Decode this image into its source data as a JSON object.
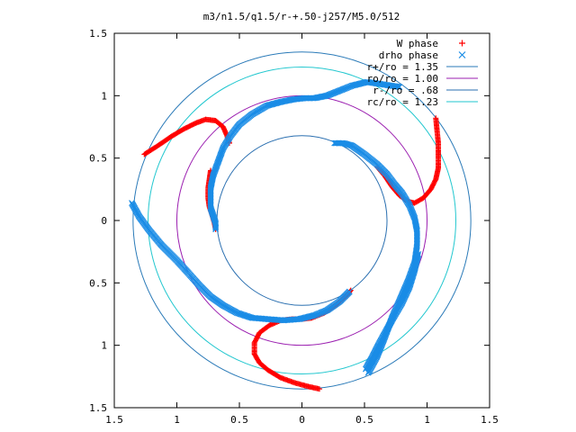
{
  "chart_data": {
    "type": "scatter",
    "title": "m3/n1.5/q1.5/r-+.50-j257/M5.0/512",
    "xlabel": "",
    "ylabel": "",
    "xlim": [
      -1.5,
      1.5
    ],
    "ylim": [
      -1.5,
      1.5
    ],
    "grid": false,
    "legend_position": "top-right",
    "x_tick_labels": [
      "1.5",
      "1",
      "0.5",
      "0",
      "0.5",
      "1",
      "1.5"
    ],
    "y_tick_labels": [
      "1.5",
      "1",
      "0.5",
      "0",
      "0.5",
      "1",
      "1.5"
    ],
    "series": [
      {
        "name": "W phase",
        "marker": "+",
        "color": "#ff0000",
        "segments": [
          [
            [
              -1.26,
              0.53
            ],
            [
              -1.15,
              0.6
            ],
            [
              -1.05,
              0.67
            ],
            [
              -0.95,
              0.73
            ],
            [
              -0.85,
              0.78
            ],
            [
              -0.77,
              0.81
            ],
            [
              -0.69,
              0.8
            ],
            [
              -0.63,
              0.75
            ],
            [
              -0.6,
              0.68
            ],
            [
              -0.58,
              0.62
            ]
          ],
          [
            [
              -0.73,
              0.4
            ],
            [
              -0.74,
              0.33
            ],
            [
              -0.75,
              0.26
            ],
            [
              -0.75,
              0.18
            ],
            [
              -0.74,
              0.11
            ],
            [
              -0.72,
              0.05
            ],
            [
              -0.7,
              -0.02
            ],
            [
              -0.69,
              -0.07
            ]
          ],
          [
            [
              1.07,
              0.82
            ],
            [
              1.08,
              0.72
            ],
            [
              1.09,
              0.62
            ],
            [
              1.09,
              0.52
            ],
            [
              1.09,
              0.42
            ],
            [
              1.07,
              0.33
            ],
            [
              1.03,
              0.25
            ],
            [
              0.97,
              0.18
            ],
            [
              0.9,
              0.14
            ],
            [
              0.85,
              0.15
            ],
            [
              0.78,
              0.2
            ],
            [
              0.72,
              0.27
            ],
            [
              0.66,
              0.36
            ],
            [
              0.6,
              0.43
            ]
          ],
          [
            [
              0.14,
              -1.35
            ],
            [
              0.05,
              -1.33
            ],
            [
              -0.06,
              -1.3
            ],
            [
              -0.17,
              -1.26
            ],
            [
              -0.27,
              -1.2
            ],
            [
              -0.34,
              -1.14
            ],
            [
              -0.38,
              -1.07
            ],
            [
              -0.38,
              -0.98
            ],
            [
              -0.34,
              -0.9
            ],
            [
              -0.26,
              -0.84
            ],
            [
              -0.17,
              -0.8
            ],
            [
              -0.08,
              -0.79
            ],
            [
              0.0,
              -0.79
            ],
            [
              0.08,
              -0.78
            ],
            [
              0.18,
              -0.74
            ],
            [
              0.28,
              -0.67
            ],
            [
              0.36,
              -0.6
            ],
            [
              0.39,
              -0.56
            ]
          ]
        ]
      },
      {
        "name": "drho phase",
        "marker": "x",
        "color": "#1a8ce6",
        "segments": [
          [
            [
              0.78,
              1.07
            ],
            [
              0.65,
              1.09
            ],
            [
              0.52,
              1.11
            ],
            [
              0.4,
              1.08
            ],
            [
              0.3,
              1.04
            ],
            [
              0.2,
              1.0
            ],
            [
              0.1,
              0.98
            ],
            [
              0.02,
              0.98
            ],
            [
              -0.07,
              0.97
            ],
            [
              -0.17,
              0.95
            ],
            [
              -0.28,
              0.92
            ],
            [
              -0.4,
              0.85
            ],
            [
              -0.5,
              0.77
            ],
            [
              -0.57,
              0.68
            ],
            [
              -0.63,
              0.58
            ],
            [
              -0.67,
              0.47
            ],
            [
              -0.71,
              0.36
            ],
            [
              -0.73,
              0.26
            ],
            [
              -0.73,
              0.17
            ],
            [
              -0.73,
              0.1
            ],
            [
              -0.71,
              0.04
            ],
            [
              -0.69,
              -0.02
            ],
            [
              -0.69,
              -0.07
            ]
          ],
          [
            [
              0.26,
              0.62
            ],
            [
              0.33,
              0.62
            ],
            [
              0.4,
              0.6
            ],
            [
              0.5,
              0.53
            ],
            [
              0.6,
              0.45
            ],
            [
              0.68,
              0.37
            ],
            [
              0.74,
              0.29
            ],
            [
              0.8,
              0.22
            ],
            [
              0.86,
              0.12
            ],
            [
              0.9,
              0.02
            ],
            [
              0.92,
              -0.08
            ],
            [
              0.92,
              -0.2
            ],
            [
              0.9,
              -0.34
            ],
            [
              0.85,
              -0.48
            ],
            [
              0.79,
              -0.62
            ],
            [
              0.72,
              -0.78
            ],
            [
              0.66,
              -0.94
            ],
            [
              0.6,
              -1.09
            ],
            [
              0.53,
              -1.22
            ]
          ],
          [
            [
              -1.36,
              0.14
            ],
            [
              -1.3,
              0.03
            ],
            [
              -1.22,
              -0.08
            ],
            [
              -1.12,
              -0.2
            ],
            [
              -1.0,
              -0.32
            ],
            [
              -0.9,
              -0.43
            ],
            [
              -0.82,
              -0.52
            ],
            [
              -0.73,
              -0.61
            ],
            [
              -0.63,
              -0.68
            ],
            [
              -0.52,
              -0.74
            ],
            [
              -0.4,
              -0.78
            ],
            [
              -0.28,
              -0.79
            ],
            [
              -0.15,
              -0.8
            ],
            [
              -0.02,
              -0.79
            ],
            [
              0.1,
              -0.76
            ],
            [
              0.2,
              -0.72
            ],
            [
              0.3,
              -0.65
            ],
            [
              0.38,
              -0.57
            ]
          ],
          [
            [
              0.93,
              -0.27
            ],
            [
              0.9,
              -0.4
            ],
            [
              0.86,
              -0.53
            ],
            [
              0.8,
              -0.66
            ],
            [
              0.73,
              -0.78
            ],
            [
              0.67,
              -0.89
            ],
            [
              0.61,
              -1.0
            ],
            [
              0.56,
              -1.1
            ],
            [
              0.51,
              -1.19
            ]
          ]
        ]
      },
      {
        "name": "r+/ro = 1.35",
        "type": "circle",
        "radius": 1.35,
        "color": "#2a7ab8"
      },
      {
        "name": "ro/ro = 1.00",
        "type": "circle",
        "radius": 1.0,
        "color": "#9b1fb0"
      },
      {
        "name": "r-/ro = .68",
        "type": "circle",
        "radius": 0.68,
        "color": "#2a6fb0"
      },
      {
        "name": "rc/ro = 1.23",
        "type": "circle",
        "radius": 1.23,
        "color": "#22c7cf"
      }
    ]
  }
}
